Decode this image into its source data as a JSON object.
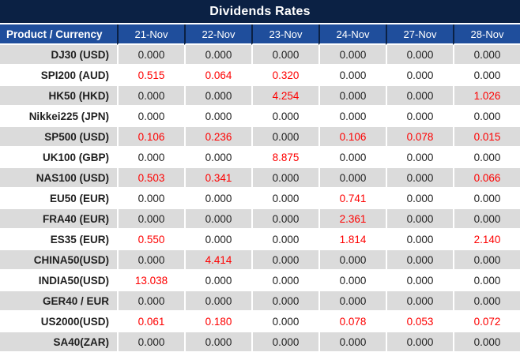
{
  "chart_data": {
    "type": "table",
    "title": "Dividends Rates",
    "product_header": "Product / Currency",
    "date_headers": [
      "21-Nov",
      "22-Nov",
      "23-Nov",
      "24-Nov",
      "27-Nov",
      "28-Nov"
    ],
    "rows": [
      {
        "product": "DJ30 (USD)",
        "values": [
          "0.000",
          "0.000",
          "0.000",
          "0.000",
          "0.000",
          "0.000"
        ]
      },
      {
        "product": "SPI200 (AUD)",
        "values": [
          "0.515",
          "0.064",
          "0.320",
          "0.000",
          "0.000",
          "0.000"
        ]
      },
      {
        "product": "HK50 (HKD)",
        "values": [
          "0.000",
          "0.000",
          "4.254",
          "0.000",
          "0.000",
          "1.026"
        ]
      },
      {
        "product": "Nikkei225 (JPN)",
        "values": [
          "0.000",
          "0.000",
          "0.000",
          "0.000",
          "0.000",
          "0.000"
        ]
      },
      {
        "product": "SP500 (USD)",
        "values": [
          "0.106",
          "0.236",
          "0.000",
          "0.106",
          "0.078",
          "0.015"
        ]
      },
      {
        "product": "UK100 (GBP)",
        "values": [
          "0.000",
          "0.000",
          "8.875",
          "0.000",
          "0.000",
          "0.000"
        ]
      },
      {
        "product": "NAS100 (USD)",
        "values": [
          "0.503",
          "0.341",
          "0.000",
          "0.000",
          "0.000",
          "0.066"
        ]
      },
      {
        "product": "EU50 (EUR)",
        "values": [
          "0.000",
          "0.000",
          "0.000",
          "0.741",
          "0.000",
          "0.000"
        ]
      },
      {
        "product": "FRA40 (EUR)",
        "values": [
          "0.000",
          "0.000",
          "0.000",
          "2.361",
          "0.000",
          "0.000"
        ]
      },
      {
        "product": "ES35 (EUR)",
        "values": [
          "0.550",
          "0.000",
          "0.000",
          "1.814",
          "0.000",
          "2.140"
        ]
      },
      {
        "product": "CHINA50(USD)",
        "values": [
          "0.000",
          "4.414",
          "0.000",
          "0.000",
          "0.000",
          "0.000"
        ]
      },
      {
        "product": "INDIA50(USD)",
        "values": [
          "13.038",
          "0.000",
          "0.000",
          "0.000",
          "0.000",
          "0.000"
        ]
      },
      {
        "product": "GER40 / EUR",
        "values": [
          "0.000",
          "0.000",
          "0.000",
          "0.000",
          "0.000",
          "0.000"
        ]
      },
      {
        "product": "US2000(USD)",
        "values": [
          "0.061",
          "0.180",
          "0.000",
          "0.078",
          "0.053",
          "0.072"
        ]
      },
      {
        "product": "SA40(ZAR)",
        "values": [
          "0.000",
          "0.000",
          "0.000",
          "0.000",
          "0.000",
          "0.000"
        ]
      }
    ],
    "layout_hints": {
      "zero_value_text": "0.000",
      "legend_position": "none",
      "grid": "white-separators"
    }
  },
  "colors": {
    "title_bar_bg": "#0b2144",
    "header_bg": "#1f4e9c",
    "header_text": "#ffffff",
    "row_alt_bg": "#dbdbdb",
    "row_bg": "#ffffff",
    "zero_text": "#1f1f1f",
    "nonzero_text": "#fe0000"
  }
}
